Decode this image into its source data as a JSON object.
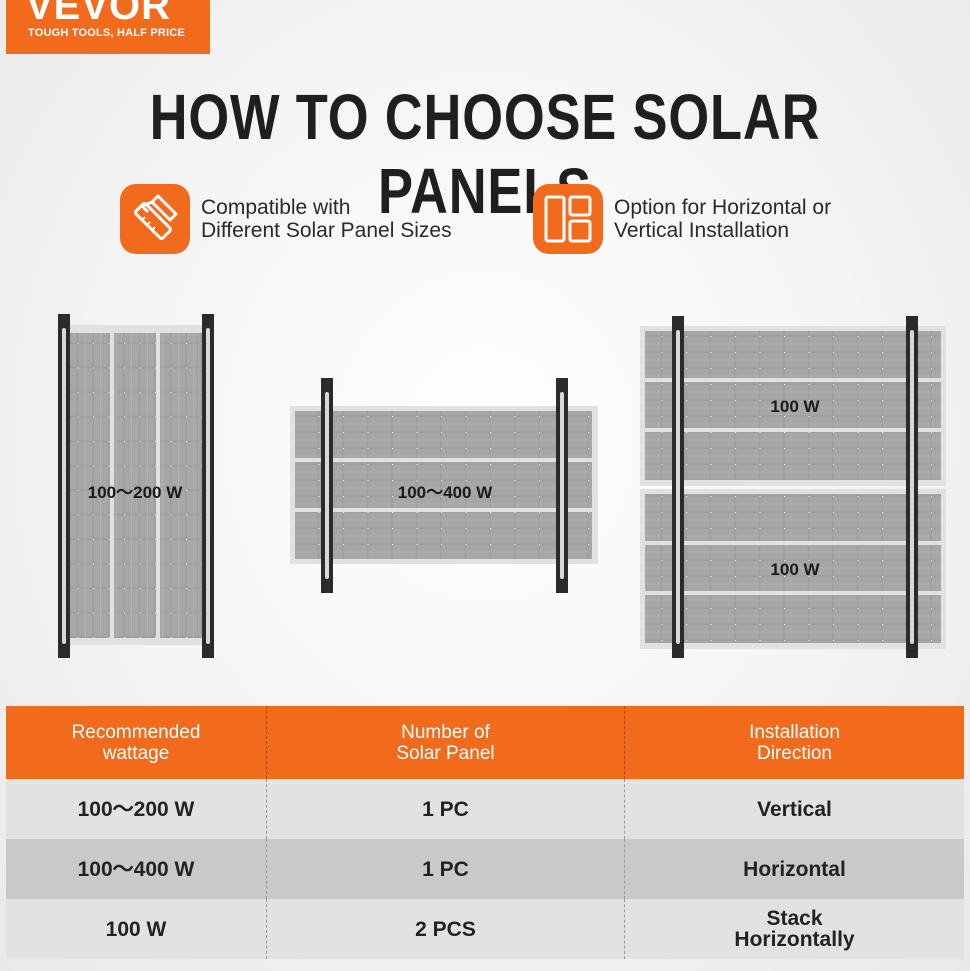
{
  "brand": {
    "name": "VEVOR",
    "tagline": "TOUGH TOOLS, HALF PRICE",
    "color": "#f26a1b"
  },
  "title": "HOW TO CHOOSE SOLAR PANELS",
  "features": [
    {
      "icon": "ruler-pencil-icon",
      "line1": "Compatible with",
      "line2": "Different Solar Panel Sizes"
    },
    {
      "icon": "layout-grid-icon",
      "line1": "Option for Horizontal or",
      "line2": "Vertical Installation"
    }
  ],
  "panels": [
    {
      "label": "100～200 W"
    },
    {
      "label": "100～400 W"
    },
    {
      "label_top": "100 W",
      "label_bottom": "100 W"
    }
  ],
  "table": {
    "headers": [
      {
        "line1": "Recommended",
        "line2": "wattage"
      },
      {
        "line1": "Number of",
        "line2": "Solar Panel"
      },
      {
        "line1": "Installation",
        "line2": "Direction"
      }
    ],
    "rows": [
      {
        "wattage": "100～200 W",
        "count": "1 PC",
        "direction_line1": "Vertical",
        "direction_line2": ""
      },
      {
        "wattage": "100～400 W",
        "count": "1 PC",
        "direction_line1": "Horizontal",
        "direction_line2": ""
      },
      {
        "wattage": "100 W",
        "count": "2 PCS",
        "direction_line1": "Stack",
        "direction_line2": "Horizontally"
      }
    ]
  }
}
